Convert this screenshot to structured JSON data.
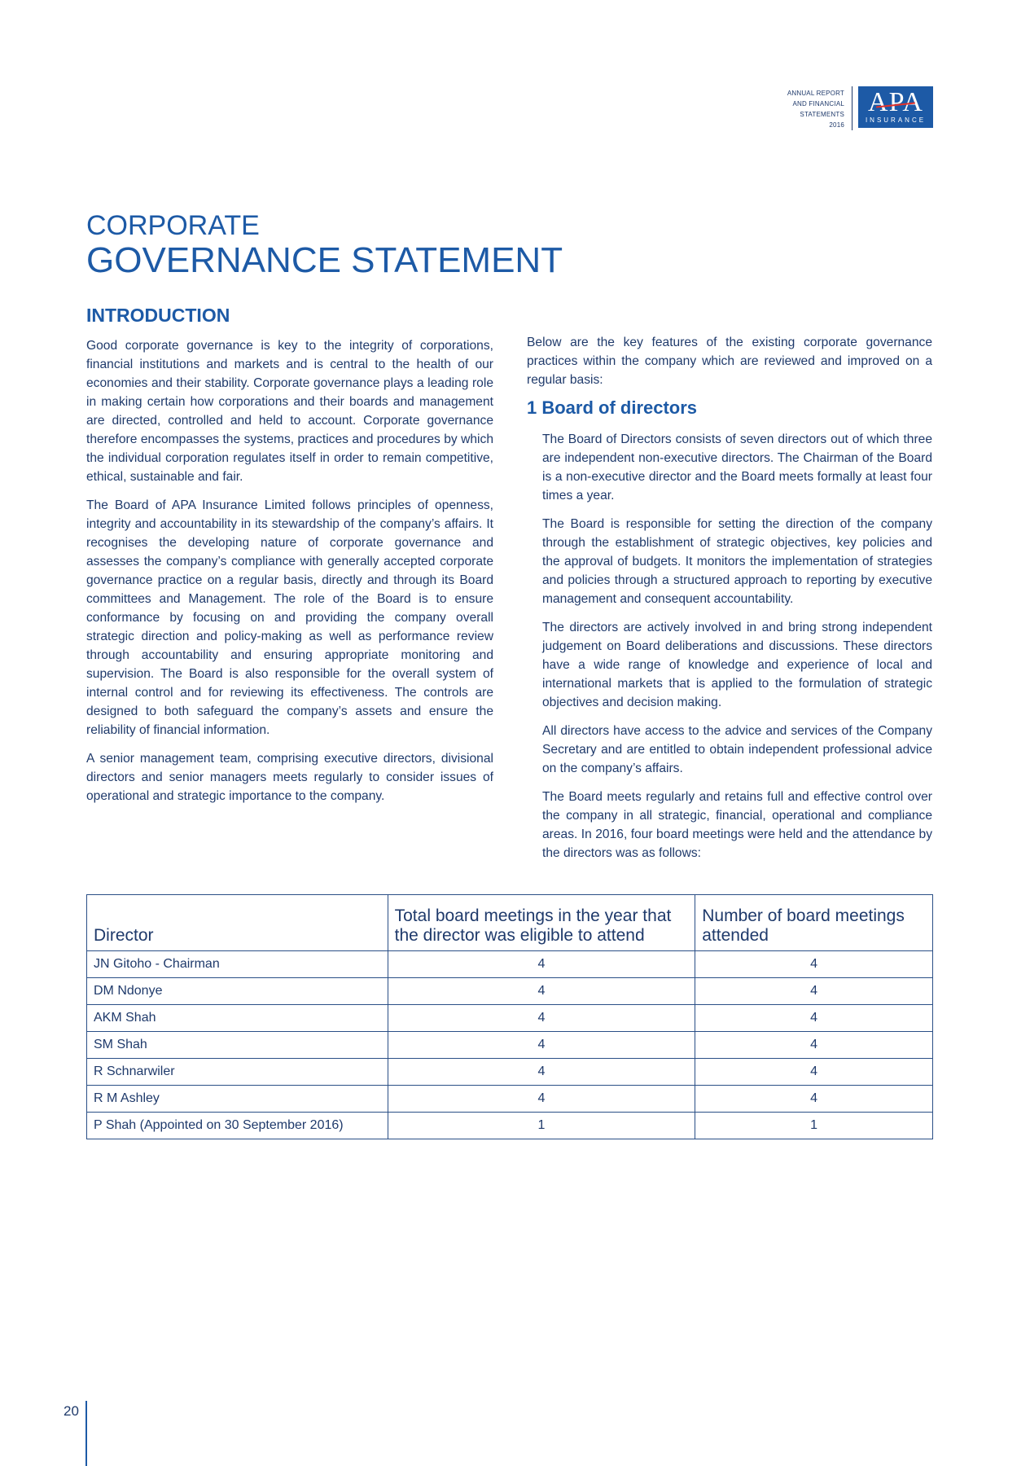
{
  "header": {
    "label_lines": [
      "ANNUAL REPORT",
      "AND FINANCIAL",
      "STATEMENTS",
      "2016"
    ],
    "logo_text": "APA",
    "logo_subtext": "INSURANCE"
  },
  "title": {
    "line1": "CORPORATE",
    "line2": "GOVERNANCE STATEMENT"
  },
  "introduction": {
    "heading": "INTRODUCTION",
    "paragraphs": [
      "Good corporate governance is key to the integrity of corporations, financial institutions and markets and is central to the health of our economies and their stability. Corporate governance plays a leading role in making certain how corporations and their boards and management are directed, controlled and held to account. Corporate governance therefore encompasses the systems, practices and procedures by which the individual corporation regulates itself in order to remain competitive, ethical, sustainable and fair.",
      "The Board of APA Insurance Limited follows principles of openness, integrity and accountability in its stewardship of the company’s affairs. It recognises the developing nature of corporate governance and assesses the company’s compliance with generally accepted corporate governance practice on a regular basis, directly and through its Board committees and Management. The role of the Board is to ensure conformance by focusing on and providing the company overall strategic direction and policy-making as well as performance review through accountability and ensuring appropriate monitoring and supervision. The Board is also responsible for the overall system of internal control and for reviewing its effectiveness. The controls are designed to both safeguard the company’s assets and ensure the reliability of financial information.",
      "A senior management team, comprising executive directors, divisional directors and senior managers meets regularly to consider issues of operational and strategic importance to the company."
    ]
  },
  "key_features_intro": "Below are the key features of the existing corporate governance practices within the company which are reviewed and improved on a regular basis:",
  "board_of_directors": {
    "heading": "1 Board of directors",
    "paragraphs": [
      "The Board of Directors consists of seven directors out of which three are independent non-executive directors. The Chairman of the Board is a non-executive director and the Board meets formally at least four times a year.",
      "The Board is responsible for setting the direction of the company through the establishment of strategic objectives, key policies and the approval of budgets. It monitors the implementation of strategies and policies through a structured approach to reporting by executive management and consequent accountability.",
      "The directors are actively involved in and bring strong independent judgement on Board deliberations and discussions. These directors have a wide range of knowledge and experience of local and international markets that is applied to the formulation of strategic objectives and decision making.",
      "All directors have access to the advice and services of the Company Secretary and are entitled to obtain independent professional advice on the company’s affairs.",
      "The Board meets regularly and retains full and effective control over the company in all strategic, financial, operational and compliance areas. In 2016, four board meetings were held and the attendance by the directors was as follows:"
    ]
  },
  "attendance_table": {
    "headers": [
      "Director",
      "Total board meetings in the year that the director was eligible to attend",
      "Number of board meetings attended"
    ],
    "rows": [
      {
        "director": "JN Gitoho - Chairman",
        "eligible": "4",
        "attended": "4"
      },
      {
        "director": "DM Ndonye",
        "eligible": "4",
        "attended": "4"
      },
      {
        "director": "AKM Shah",
        "eligible": "4",
        "attended": "4"
      },
      {
        "director": "SM Shah",
        "eligible": "4",
        "attended": "4"
      },
      {
        "director": "R Schnarwiler",
        "eligible": "4",
        "attended": "4"
      },
      {
        "director": "R M Ashley",
        "eligible": "4",
        "attended": "4"
      },
      {
        "director": "P Shah (Appointed on 30 September 2016)",
        "eligible": "1",
        "attended": "1"
      }
    ]
  },
  "footer": {
    "page_number": "20"
  }
}
